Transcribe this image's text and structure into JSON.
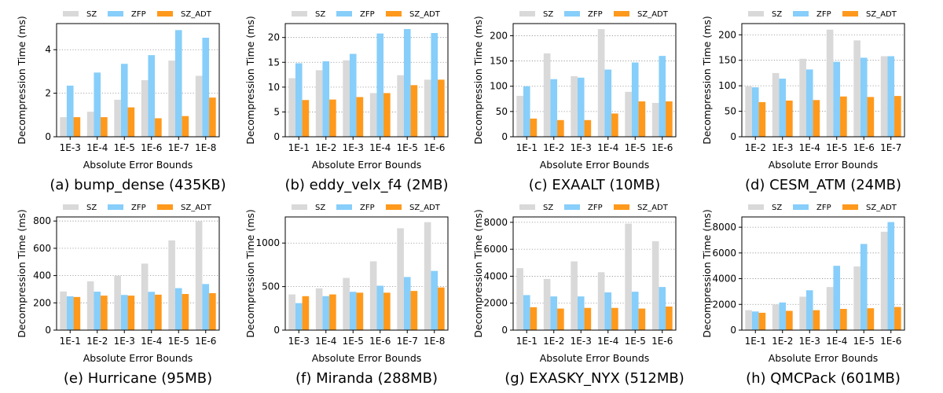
{
  "figure": {
    "legend_labels": [
      "SZ",
      "ZFP",
      "SZ_ADT"
    ],
    "series_colors": [
      "#d9d9d9",
      "#87cefa",
      "#ff991c"
    ]
  },
  "chart_data": [
    {
      "type": "bar",
      "caption": "(a) bump_dense (435KB)",
      "xlabel": "Absolute Error Bounds",
      "ylabel": "Decompression Time (ms)",
      "categories": [
        "1E-3",
        "1E-4",
        "1E-5",
        "1E-6",
        "1E-7",
        "1E-8"
      ],
      "ylim": [
        0,
        5.2
      ],
      "yticks": [
        0,
        2,
        4
      ],
      "grid": "y-dotted",
      "legend": "top",
      "series": [
        {
          "name": "SZ",
          "values": [
            0.9,
            1.15,
            1.7,
            2.6,
            3.5,
            2.8
          ]
        },
        {
          "name": "ZFP",
          "values": [
            2.35,
            2.95,
            3.35,
            3.75,
            4.9,
            4.55
          ]
        },
        {
          "name": "SZ_ADT",
          "values": [
            0.9,
            0.9,
            1.35,
            0.85,
            0.95,
            1.8
          ]
        }
      ]
    },
    {
      "type": "bar",
      "caption": "(b) eddy_velx_f4 (2MB)",
      "xlabel": "Absolute Error Bounds",
      "ylabel": "Decompression Time (ms)",
      "categories": [
        "1E-1",
        "1E-2",
        "1E-3",
        "1E-4",
        "1E-5",
        "1E-6"
      ],
      "ylim": [
        0,
        22.8
      ],
      "yticks": [
        0,
        5,
        10,
        15,
        20
      ],
      "grid": "y-dotted",
      "legend": "top",
      "series": [
        {
          "name": "SZ",
          "values": [
            11.8,
            13.4,
            15.4,
            8.8,
            12.4,
            11.5
          ]
        },
        {
          "name": "ZFP",
          "values": [
            14.8,
            15.2,
            16.7,
            20.8,
            21.7,
            20.9
          ]
        },
        {
          "name": "SZ_ADT",
          "values": [
            7.4,
            7.5,
            8.0,
            8.8,
            10.4,
            11.5
          ]
        }
      ]
    },
    {
      "type": "bar",
      "caption": "(c) EXAALT (10MB)",
      "xlabel": "Absolute Error Bounds",
      "ylabel": "Decompression Time (ms)",
      "categories": [
        "1E-1",
        "1E-2",
        "1E-3",
        "1E-4",
        "1E-5",
        "1E-6"
      ],
      "ylim": [
        0,
        224
      ],
      "yticks": [
        0,
        50,
        100,
        150,
        200
      ],
      "grid": "y-dotted",
      "legend": "top",
      "series": [
        {
          "name": "SZ",
          "values": [
            81,
            165,
            120,
            213,
            89,
            67
          ]
        },
        {
          "name": "ZFP",
          "values": [
            100,
            114,
            117,
            133,
            147,
            160
          ]
        },
        {
          "name": "SZ_ADT",
          "values": [
            36,
            33,
            33,
            46,
            70,
            70
          ]
        }
      ]
    },
    {
      "type": "bar",
      "caption": "(d) CESM_ATM (24MB)",
      "xlabel": "Absolute Error Bounds",
      "ylabel": "Decompression Time (ms)",
      "categories": [
        "1E-2",
        "1E-3",
        "1E-4",
        "1E-5",
        "1E-6",
        "1E-7"
      ],
      "ylim": [
        0,
        222
      ],
      "yticks": [
        0,
        50,
        100,
        150,
        200
      ],
      "grid": "y-dotted",
      "legend": "top",
      "series": [
        {
          "name": "SZ",
          "values": [
            99,
            125,
            153,
            210,
            189,
            158
          ]
        },
        {
          "name": "ZFP",
          "values": [
            97,
            114,
            132,
            147,
            155,
            158
          ]
        },
        {
          "name": "SZ_ADT",
          "values": [
            68,
            71,
            72,
            79,
            78,
            80
          ]
        }
      ]
    },
    {
      "type": "bar",
      "caption": "(e) Hurricane (95MB)",
      "xlabel": "Absolute Error Bounds",
      "ylabel": "Decompression Time (ms)",
      "categories": [
        "1E-1",
        "1E-2",
        "1E-3",
        "1E-4",
        "1E-5",
        "1E-6"
      ],
      "ylim": [
        0,
        830
      ],
      "yticks": [
        0,
        200,
        400,
        600,
        800
      ],
      "grid": "y-dotted",
      "legend": "top",
      "series": [
        {
          "name": "SZ",
          "values": [
            283,
            358,
            398,
            488,
            658,
            798
          ]
        },
        {
          "name": "ZFP",
          "values": [
            248,
            282,
            258,
            281,
            308,
            338
          ]
        },
        {
          "name": "SZ_ADT",
          "values": [
            243,
            253,
            253,
            260,
            265,
            271
          ]
        }
      ]
    },
    {
      "type": "bar",
      "caption": "(f) Miranda (288MB)",
      "xlabel": "Absolute Error Bounds",
      "ylabel": "Decompression Time (ms)",
      "categories": [
        "1E-3",
        "1E-4",
        "1E-5",
        "1E-6",
        "1E-7",
        "1E-8"
      ],
      "ylim": [
        0,
        1300
      ],
      "yticks": [
        0,
        500,
        1000
      ],
      "grid": "y-dotted",
      "legend": "top",
      "series": [
        {
          "name": "SZ",
          "values": [
            410,
            480,
            600,
            790,
            1170,
            1240
          ]
        },
        {
          "name": "ZFP",
          "values": [
            310,
            390,
            440,
            510,
            610,
            680
          ]
        },
        {
          "name": "SZ_ADT",
          "values": [
            390,
            410,
            430,
            430,
            450,
            490
          ]
        }
      ]
    },
    {
      "type": "bar",
      "caption": "(g) EXASKY_NYX (512MB)",
      "xlabel": "Absolute Error Bounds",
      "ylabel": "Decompression Time (ms)",
      "categories": [
        "1E-1",
        "1E-2",
        "1E-3",
        "1E-4",
        "1E-5",
        "1E-6"
      ],
      "ylim": [
        0,
        8400
      ],
      "yticks": [
        0,
        2000,
        4000,
        6000,
        8000
      ],
      "grid": "y-dotted",
      "legend": "top",
      "series": [
        {
          "name": "SZ",
          "values": [
            4600,
            3800,
            5100,
            4300,
            7900,
            6600
          ]
        },
        {
          "name": "ZFP",
          "values": [
            2600,
            2500,
            2500,
            2800,
            2850,
            3200
          ]
        },
        {
          "name": "SZ_ADT",
          "values": [
            1700,
            1600,
            1650,
            1650,
            1600,
            1750
          ]
        }
      ]
    },
    {
      "type": "bar",
      "caption": "(h) QMCPack (601MB)",
      "xlabel": "Absolute Error Bounds",
      "ylabel": "Decompression Time (ms)",
      "categories": [
        "1E-1",
        "1E-2",
        "1E-3",
        "1E-4",
        "1E-5",
        "1E-6"
      ],
      "ylim": [
        0,
        8800
      ],
      "yticks": [
        0,
        2000,
        4000,
        6000,
        8000
      ],
      "grid": "y-dotted",
      "legend": "top",
      "series": [
        {
          "name": "SZ",
          "values": [
            1550,
            2000,
            2600,
            3350,
            4950,
            7650
          ]
        },
        {
          "name": "ZFP",
          "values": [
            1450,
            2150,
            3100,
            5000,
            6700,
            8400
          ]
        },
        {
          "name": "SZ_ADT",
          "values": [
            1350,
            1500,
            1550,
            1650,
            1700,
            1800
          ]
        }
      ]
    }
  ]
}
